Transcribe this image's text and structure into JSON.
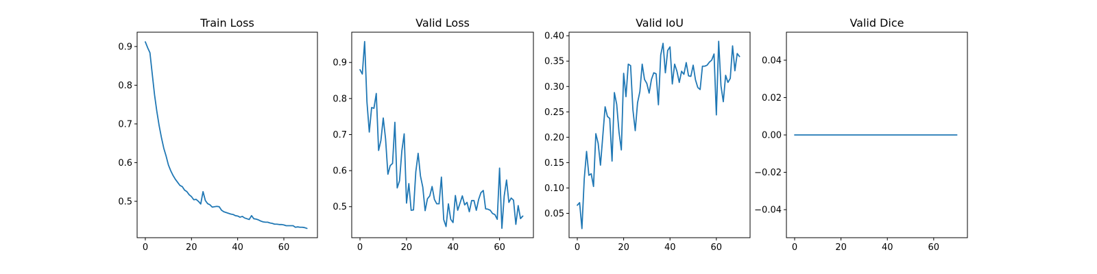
{
  "chart_data": [
    {
      "type": "line",
      "title": "Train Loss",
      "xlabel": "",
      "ylabel": "",
      "xlim": [
        -3.55,
        74.55
      ],
      "ylim": [
        0.406,
        0.937
      ],
      "xticks": [
        0,
        20,
        40,
        60
      ],
      "xtick_labels": [
        "0",
        "20",
        "40",
        "60"
      ],
      "yticks": [
        0.5,
        0.6,
        0.7,
        0.8,
        0.9
      ],
      "ytick_labels": [
        "0.5",
        "0.6",
        "0.7",
        "0.8",
        "0.9"
      ],
      "grid": false,
      "color": "#1f77b4",
      "series": [
        {
          "values": [
            0.912,
            0.897,
            0.884,
            0.829,
            0.775,
            0.732,
            0.695,
            0.664,
            0.637,
            0.617,
            0.594,
            0.579,
            0.567,
            0.557,
            0.549,
            0.541,
            0.538,
            0.529,
            0.525,
            0.517,
            0.512,
            0.504,
            0.505,
            0.5,
            0.493,
            0.525,
            0.502,
            0.494,
            0.491,
            0.485,
            0.486,
            0.487,
            0.486,
            0.477,
            0.473,
            0.471,
            0.469,
            0.467,
            0.466,
            0.463,
            0.462,
            0.459,
            0.461,
            0.457,
            0.455,
            0.453,
            0.463,
            0.455,
            0.454,
            0.452,
            0.449,
            0.447,
            0.446,
            0.446,
            0.444,
            0.443,
            0.441,
            0.441,
            0.44,
            0.44,
            0.439,
            0.437,
            0.437,
            0.437,
            0.437,
            0.433,
            0.434,
            0.433,
            0.433,
            0.432,
            0.43
          ]
        }
      ]
    },
    {
      "type": "line",
      "title": "Valid Loss",
      "xlabel": "",
      "ylabel": "",
      "xlim": [
        -3.55,
        74.55
      ],
      "ylim": [
        0.414,
        0.984
      ],
      "xticks": [
        0,
        20,
        40,
        60
      ],
      "xtick_labels": [
        "0",
        "20",
        "40",
        "60"
      ],
      "yticks": [
        0.5,
        0.6,
        0.7,
        0.8,
        0.9
      ],
      "ytick_labels": [
        "0.5",
        "0.6",
        "0.7",
        "0.8",
        "0.9"
      ],
      "grid": false,
      "color": "#1f77b4",
      "series": [
        {
          "values": [
            0.88,
            0.868,
            0.958,
            0.79,
            0.707,
            0.775,
            0.773,
            0.814,
            0.656,
            0.684,
            0.746,
            0.688,
            0.59,
            0.614,
            0.62,
            0.734,
            0.552,
            0.572,
            0.655,
            0.702,
            0.51,
            0.564,
            0.49,
            0.491,
            0.597,
            0.648,
            0.585,
            0.554,
            0.489,
            0.522,
            0.53,
            0.556,
            0.52,
            0.508,
            0.508,
            0.582,
            0.464,
            0.445,
            0.508,
            0.465,
            0.456,
            0.531,
            0.49,
            0.51,
            0.53,
            0.505,
            0.512,
            0.486,
            0.517,
            0.517,
            0.49,
            0.52,
            0.539,
            0.545,
            0.494,
            0.493,
            0.49,
            0.481,
            0.478,
            0.465,
            0.607,
            0.44,
            0.53,
            0.574,
            0.512,
            0.524,
            0.518,
            0.451,
            0.503,
            0.467,
            0.474
          ]
        }
      ]
    },
    {
      "type": "line",
      "title": "Valid IoU",
      "xlabel": "",
      "ylabel": "",
      "xlim": [
        -3.55,
        74.55
      ],
      "ylim": [
        0.002,
        0.407
      ],
      "xticks": [
        0,
        20,
        40,
        60
      ],
      "xtick_labels": [
        "0",
        "20",
        "40",
        "60"
      ],
      "yticks": [
        0.05,
        0.1,
        0.15,
        0.2,
        0.25,
        0.3,
        0.35,
        0.4
      ],
      "ytick_labels": [
        "0.05",
        "0.10",
        "0.15",
        "0.20",
        "0.25",
        "0.30",
        "0.35",
        "0.40"
      ],
      "grid": false,
      "color": "#1f77b4",
      "series": [
        {
          "values": [
            0.066,
            0.071,
            0.02,
            0.118,
            0.172,
            0.125,
            0.128,
            0.103,
            0.207,
            0.188,
            0.145,
            0.202,
            0.26,
            0.241,
            0.237,
            0.153,
            0.288,
            0.265,
            0.21,
            0.175,
            0.326,
            0.28,
            0.344,
            0.341,
            0.254,
            0.213,
            0.268,
            0.29,
            0.344,
            0.314,
            0.306,
            0.287,
            0.314,
            0.327,
            0.325,
            0.264,
            0.362,
            0.385,
            0.327,
            0.371,
            0.378,
            0.305,
            0.344,
            0.33,
            0.308,
            0.33,
            0.324,
            0.347,
            0.321,
            0.32,
            0.342,
            0.313,
            0.298,
            0.294,
            0.34,
            0.34,
            0.342,
            0.348,
            0.352,
            0.364,
            0.244,
            0.389,
            0.301,
            0.27,
            0.322,
            0.308,
            0.316,
            0.38,
            0.331,
            0.365,
            0.359
          ]
        }
      ]
    },
    {
      "type": "line",
      "title": "Valid Dice",
      "xlabel": "",
      "ylabel": "",
      "xlim": [
        -3.55,
        74.55
      ],
      "ylim": [
        -0.055,
        0.055
      ],
      "xticks": [
        0,
        20,
        40,
        60
      ],
      "xtick_labels": [
        "0",
        "20",
        "40",
        "60"
      ],
      "yticks": [
        -0.04,
        -0.02,
        0.0,
        0.02,
        0.04
      ],
      "ytick_labels": [
        "−0.04",
        "−0.02",
        "0.00",
        "0.02",
        "0.04"
      ],
      "grid": false,
      "color": "#1f77b4",
      "series": [
        {
          "values": [
            0,
            0,
            0,
            0,
            0,
            0,
            0,
            0,
            0,
            0,
            0,
            0,
            0,
            0,
            0,
            0,
            0,
            0,
            0,
            0,
            0,
            0,
            0,
            0,
            0,
            0,
            0,
            0,
            0,
            0,
            0,
            0,
            0,
            0,
            0,
            0,
            0,
            0,
            0,
            0,
            0,
            0,
            0,
            0,
            0,
            0,
            0,
            0,
            0,
            0,
            0,
            0,
            0,
            0,
            0,
            0,
            0,
            0,
            0,
            0,
            0,
            0,
            0,
            0,
            0,
            0,
            0,
            0,
            0,
            0,
            0
          ]
        }
      ]
    }
  ]
}
